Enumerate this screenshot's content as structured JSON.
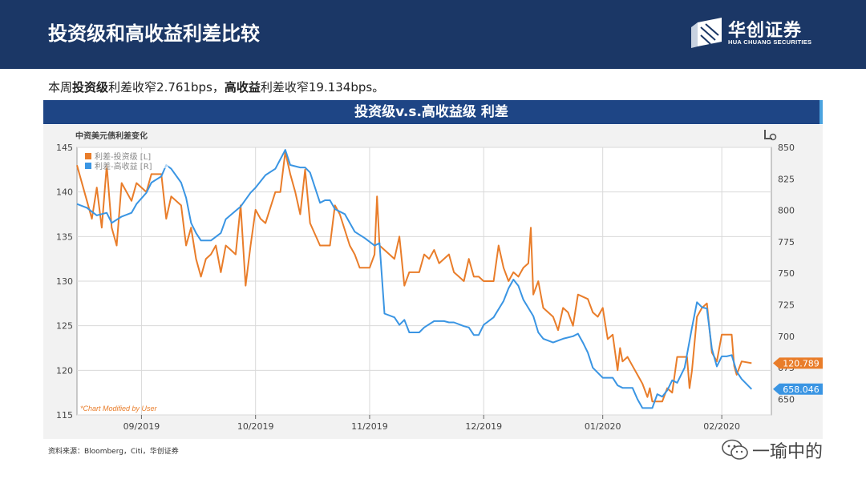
{
  "header": {
    "title": "投资级和高收益利差比较",
    "logo_cn": "华创证券",
    "logo_en": "HUA CHUANG SECURITIES"
  },
  "summary": {
    "prefix": "本周",
    "ig_label": "投资级",
    "ig_text": "利差收窄2.761bps，",
    "hy_label": "高收益",
    "hy_text": "利差收窄19.134bps。"
  },
  "banner": {
    "title": "投资级v.s.高收益级 利差"
  },
  "source": "资料来源：Bloomberg，Citi，华创证券",
  "watermark": "一瑜中的",
  "chart_data": {
    "type": "line",
    "title": "中资美元债利差变化",
    "footnote": "*Chart Modified by User",
    "x_ticks": [
      "09/2019",
      "10/2019",
      "11/2019",
      "12/2019",
      "01/2020",
      "02/2020"
    ],
    "y_left": {
      "lim": [
        115,
        145
      ],
      "ticks": [
        115,
        120,
        125,
        130,
        135,
        140,
        145
      ]
    },
    "y_right": {
      "lim": [
        637.5,
        850
      ],
      "ticks": [
        650,
        675,
        700,
        725,
        750,
        775,
        800,
        825,
        850
      ]
    },
    "legend_position": "top-left",
    "colors": {
      "ig": "#e97d2a",
      "hy": "#3a95e3"
    },
    "x_range": [
      0,
      140
    ],
    "tick_positions": [
      13,
      36,
      59,
      82,
      106,
      130
    ],
    "series": [
      {
        "name": "利差-投资级 [L]",
        "axis": "left",
        "last_label": "120.789",
        "points": [
          [
            0,
            143
          ],
          [
            2,
            139
          ],
          [
            3,
            137
          ],
          [
            4,
            140.5
          ],
          [
            5,
            136
          ],
          [
            6,
            143
          ],
          [
            7,
            136
          ],
          [
            8,
            134
          ],
          [
            9,
            141
          ],
          [
            11,
            139
          ],
          [
            12,
            141
          ],
          [
            14,
            140
          ],
          [
            15,
            142
          ],
          [
            17,
            142
          ],
          [
            18,
            137
          ],
          [
            19,
            139.5
          ],
          [
            21,
            138.5
          ],
          [
            22,
            134
          ],
          [
            23,
            136
          ],
          [
            24,
            132.5
          ],
          [
            25,
            130.5
          ],
          [
            26,
            132.5
          ],
          [
            27,
            133
          ],
          [
            28,
            134
          ],
          [
            29,
            131
          ],
          [
            30,
            134
          ],
          [
            31,
            133.5
          ],
          [
            32,
            133
          ],
          [
            33,
            138.5
          ],
          [
            34,
            129.5
          ],
          [
            35,
            134
          ],
          [
            36,
            138
          ],
          [
            37,
            137
          ],
          [
            38,
            136.5
          ],
          [
            40,
            140
          ],
          [
            41,
            140
          ],
          [
            42,
            144.5
          ],
          [
            43,
            142
          ],
          [
            44,
            140
          ],
          [
            45,
            137.5
          ],
          [
            46,
            142.5
          ],
          [
            47,
            136.5
          ],
          [
            49,
            134
          ],
          [
            51,
            134
          ],
          [
            52,
            138.5
          ],
          [
            53,
            137.5
          ],
          [
            55,
            134
          ],
          [
            56,
            133
          ],
          [
            57,
            131.5
          ],
          [
            59,
            131.5
          ],
          [
            60,
            133
          ],
          [
            60.5,
            139.5
          ],
          [
            61,
            134
          ],
          [
            63,
            133
          ],
          [
            64,
            132.5
          ],
          [
            65,
            135
          ],
          [
            66,
            129.5
          ],
          [
            67,
            131
          ],
          [
            69,
            131
          ],
          [
            70,
            133
          ],
          [
            71,
            132.5
          ],
          [
            72,
            133.5
          ],
          [
            73,
            132
          ],
          [
            75,
            133
          ],
          [
            76,
            131
          ],
          [
            77,
            130.5
          ],
          [
            78,
            130
          ],
          [
            79,
            132.5
          ],
          [
            80,
            130.5
          ],
          [
            81,
            130.5
          ],
          [
            82,
            130
          ],
          [
            83,
            130
          ],
          [
            84,
            130
          ],
          [
            85,
            134
          ],
          [
            86,
            131.5
          ],
          [
            87,
            130
          ],
          [
            88,
            131
          ],
          [
            89,
            130.5
          ],
          [
            90,
            131.5
          ],
          [
            91,
            132
          ],
          [
            91.5,
            136
          ],
          [
            92,
            128.5
          ],
          [
            93,
            130
          ],
          [
            94,
            127
          ],
          [
            96,
            126
          ],
          [
            97,
            124.5
          ],
          [
            98,
            127
          ],
          [
            99,
            126.5
          ],
          [
            100,
            125
          ],
          [
            101,
            128.5
          ],
          [
            103,
            128
          ],
          [
            104,
            126.5
          ],
          [
            105,
            126
          ],
          [
            106,
            127
          ],
          [
            107,
            123.5
          ],
          [
            108,
            124
          ],
          [
            109,
            120
          ],
          [
            109.5,
            122.5
          ],
          [
            110,
            121
          ],
          [
            111,
            121.5
          ],
          [
            112,
            120.5
          ],
          [
            113,
            119.5
          ],
          [
            114,
            118.5
          ],
          [
            115,
            117
          ],
          [
            115.5,
            118
          ],
          [
            116,
            116.5
          ],
          [
            118,
            116.5
          ],
          [
            119,
            118
          ],
          [
            120,
            117.5
          ],
          [
            121,
            121.5
          ],
          [
            123,
            121.5
          ],
          [
            123.5,
            118
          ],
          [
            124,
            120
          ],
          [
            125,
            126
          ],
          [
            126,
            127
          ],
          [
            127,
            127.5
          ],
          [
            128,
            122
          ],
          [
            129,
            121
          ],
          [
            130,
            124
          ],
          [
            132,
            124
          ],
          [
            132.5,
            120.5
          ],
          [
            133,
            119.5
          ],
          [
            134,
            121
          ],
          [
            136,
            120.8
          ]
        ]
      },
      {
        "name": "利差-高收益 [R]",
        "axis": "right",
        "last_label": "658.046",
        "points": [
          [
            0,
            805
          ],
          [
            2,
            802
          ],
          [
            4,
            796
          ],
          [
            6,
            798
          ],
          [
            7,
            790
          ],
          [
            9,
            795
          ],
          [
            11,
            798
          ],
          [
            12,
            805
          ],
          [
            14,
            814
          ],
          [
            15,
            822
          ],
          [
            17,
            827
          ],
          [
            18,
            836
          ],
          [
            19,
            833
          ],
          [
            21,
            822
          ],
          [
            22,
            810
          ],
          [
            23,
            790
          ],
          [
            24,
            782
          ],
          [
            25,
            776
          ],
          [
            27,
            776
          ],
          [
            29,
            782
          ],
          [
            30,
            793
          ],
          [
            33,
            803
          ],
          [
            35,
            814
          ],
          [
            36,
            818
          ],
          [
            38,
            828
          ],
          [
            40,
            833
          ],
          [
            42,
            848
          ],
          [
            43,
            836
          ],
          [
            45,
            834
          ],
          [
            46,
            834
          ],
          [
            47,
            830
          ],
          [
            49,
            806
          ],
          [
            50,
            808
          ],
          [
            51,
            808
          ],
          [
            52,
            801
          ],
          [
            54,
            797
          ],
          [
            55,
            790
          ],
          [
            56,
            783
          ],
          [
            58,
            778
          ],
          [
            60,
            772
          ],
          [
            61,
            774
          ],
          [
            62,
            718
          ],
          [
            64,
            715
          ],
          [
            65,
            709
          ],
          [
            66,
            713
          ],
          [
            67,
            703
          ],
          [
            69,
            703
          ],
          [
            70,
            707
          ],
          [
            72,
            712
          ],
          [
            74,
            712
          ],
          [
            75,
            711
          ],
          [
            76,
            711
          ],
          [
            78,
            708
          ],
          [
            79,
            707
          ],
          [
            80,
            701
          ],
          [
            81,
            701
          ],
          [
            82,
            709
          ],
          [
            84,
            715
          ],
          [
            86,
            728
          ],
          [
            87,
            738
          ],
          [
            88,
            745
          ],
          [
            89,
            740
          ],
          [
            90,
            729
          ],
          [
            92,
            716
          ],
          [
            93,
            703
          ],
          [
            94,
            698
          ],
          [
            96,
            695
          ],
          [
            98,
            698
          ],
          [
            100,
            700
          ],
          [
            101,
            702
          ],
          [
            102,
            695
          ],
          [
            103,
            687
          ],
          [
            104,
            675
          ],
          [
            106,
            667
          ],
          [
            107,
            667
          ],
          [
            108,
            667
          ],
          [
            109,
            661
          ],
          [
            110,
            659
          ],
          [
            111,
            659
          ],
          [
            112,
            659
          ],
          [
            113,
            650
          ],
          [
            114,
            643
          ],
          [
            116,
            643
          ],
          [
            117,
            654
          ],
          [
            118,
            652
          ],
          [
            119,
            657
          ],
          [
            120,
            665
          ],
          [
            121,
            663
          ],
          [
            122,
            671
          ],
          [
            122.5,
            675
          ],
          [
            124,
            707
          ],
          [
            125,
            727
          ],
          [
            126,
            723
          ],
          [
            127,
            722
          ],
          [
            128,
            690
          ],
          [
            129,
            676
          ],
          [
            130,
            684
          ],
          [
            131,
            684
          ],
          [
            132,
            685
          ],
          [
            133,
            672
          ],
          [
            134,
            666
          ],
          [
            136,
            658
          ]
        ]
      }
    ]
  }
}
